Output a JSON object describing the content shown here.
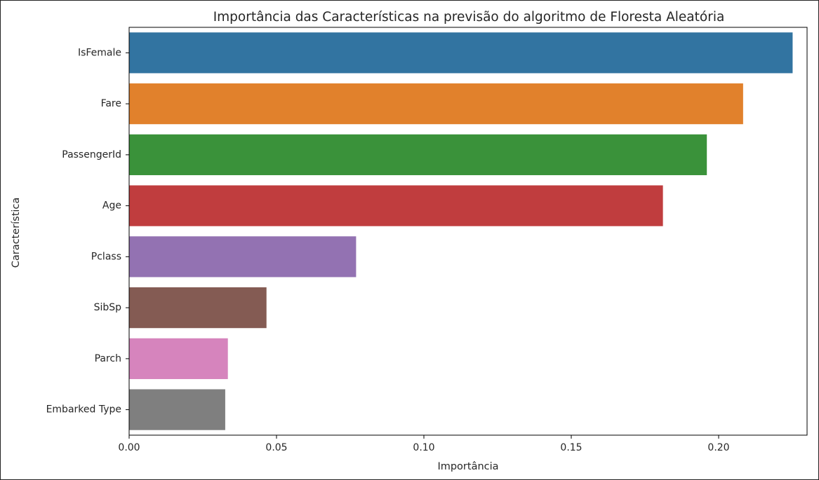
{
  "chart_data": {
    "type": "bar",
    "orientation": "horizontal",
    "title": "Importância das Características na previsão do algoritmo de Floresta Aleatória",
    "xlabel": "Importância",
    "ylabel": "Característica",
    "categories": [
      "IsFemale",
      "Fare",
      "PassengerId",
      "Age",
      "Pclass",
      "SibSp",
      "Parch",
      "Embarked Type"
    ],
    "values": [
      0.2251,
      0.2083,
      0.196,
      0.1811,
      0.077,
      0.0466,
      0.0335,
      0.0326
    ],
    "colors": [
      "#3274a1",
      "#e1812c",
      "#3a923a",
      "#c03d3e",
      "#9372b2",
      "#845b53",
      "#d684bd",
      "#7f7f7f"
    ],
    "xlim": [
      0,
      0.23
    ],
    "xticks": [
      0.0,
      0.05,
      0.1,
      0.15,
      0.2
    ],
    "xtick_labels": [
      "0.00",
      "0.05",
      "0.10",
      "0.15",
      "0.20"
    ],
    "grid": false,
    "legend": false
  }
}
